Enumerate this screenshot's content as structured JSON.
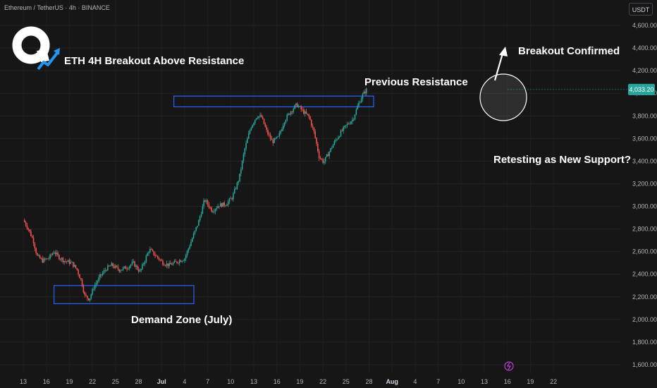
{
  "header": {
    "symbol": "Ethereum / TetherUS · 4h · BINANCE",
    "currency": "USDT"
  },
  "annotations": {
    "title": "ETH 4H Breakout Above Resistance",
    "previous_resistance": "Previous Resistance",
    "breakout_confirmed": "Breakout Confirmed",
    "retesting": "Retesting as New Support?",
    "demand_zone": "Demand Zone (July)"
  },
  "colors": {
    "background": "#161616",
    "up": "#26a69a",
    "down": "#ef5350",
    "zone": "#2962ff",
    "price_tag": "#26a69a",
    "logo_arrow": "#2196f3"
  },
  "chart_data": {
    "type": "candlestick",
    "title": "ETH 4H Breakout Above Resistance",
    "xlabel": "",
    "ylabel": "",
    "x_ticks": [
      "13",
      "16",
      "19",
      "22",
      "25",
      "28",
      "Jul",
      "4",
      "7",
      "10",
      "13",
      "16",
      "19",
      "22",
      "25",
      "28",
      "Aug",
      "4",
      "7",
      "10",
      "13",
      "16",
      "19",
      "22"
    ],
    "y_ticks": [
      1600,
      1800,
      2000,
      2200,
      2400,
      2600,
      2800,
      3000,
      3200,
      3400,
      3600,
      3800,
      4000,
      4200,
      4400,
      4600
    ],
    "y_tick_labels": [
      "1,600.00",
      "1,800.00",
      "2,000.00",
      "2,200.00",
      "2,400.00",
      "2,600.00",
      "2,800.00",
      "3,000.00",
      "3,200.00",
      "3,400.00",
      "3,600.00",
      "3,800.00",
      "4,000.00",
      "4,200.00",
      "4,400.00",
      "4,600.00"
    ],
    "ylim": [
      1560,
      4720
    ],
    "last_price": 4033.2,
    "last_price_label": "4,033.20",
    "zones": [
      {
        "name": "Previous Resistance",
        "start_day": 19.6,
        "end_day": 45.6,
        "low": 3880,
        "high": 3975
      },
      {
        "name": "Demand Zone (July)",
        "start_day": 4.0,
        "end_day": 22.2,
        "low": 2140,
        "high": 2300
      }
    ],
    "price_path": [
      [
        0.0,
        2880
      ],
      [
        0.6,
        2810
      ],
      [
        1.3,
        2700
      ],
      [
        1.8,
        2560
      ],
      [
        2.5,
        2520
      ],
      [
        3.3,
        2540
      ],
      [
        4.0,
        2600
      ],
      [
        4.5,
        2560
      ],
      [
        5.3,
        2520
      ],
      [
        6.3,
        2500
      ],
      [
        7.0,
        2440
      ],
      [
        7.6,
        2330
      ],
      [
        8.0,
        2210
      ],
      [
        8.6,
        2180
      ],
      [
        9.2,
        2290
      ],
      [
        10.0,
        2380
      ],
      [
        10.8,
        2450
      ],
      [
        11.5,
        2480
      ],
      [
        12.5,
        2440
      ],
      [
        13.5,
        2460
      ],
      [
        14.3,
        2500
      ],
      [
        15.2,
        2420
      ],
      [
        15.8,
        2520
      ],
      [
        16.4,
        2620
      ],
      [
        17.3,
        2560
      ],
      [
        18.2,
        2500
      ],
      [
        19.0,
        2480
      ],
      [
        20.0,
        2510
      ],
      [
        21.0,
        2540
      ],
      [
        21.9,
        2700
      ],
      [
        22.8,
        2860
      ],
      [
        23.6,
        3060
      ],
      [
        24.6,
        2960
      ],
      [
        25.4,
        3010
      ],
      [
        26.4,
        3020
      ],
      [
        27.2,
        3080
      ],
      [
        28.1,
        3250
      ],
      [
        28.8,
        3500
      ],
      [
        29.6,
        3700
      ],
      [
        30.4,
        3800
      ],
      [
        31.0,
        3790
      ],
      [
        31.7,
        3660
      ],
      [
        32.4,
        3570
      ],
      [
        33.2,
        3610
      ],
      [
        34.0,
        3760
      ],
      [
        34.8,
        3840
      ],
      [
        35.6,
        3900
      ],
      [
        36.4,
        3840
      ],
      [
        37.2,
        3790
      ],
      [
        37.9,
        3640
      ],
      [
        38.5,
        3440
      ],
      [
        39.1,
        3390
      ],
      [
        39.8,
        3480
      ],
      [
        40.6,
        3580
      ],
      [
        41.4,
        3660
      ],
      [
        42.1,
        3720
      ],
      [
        42.9,
        3770
      ],
      [
        43.6,
        3900
      ],
      [
        44.2,
        3990
      ],
      [
        44.8,
        4040
      ]
    ]
  }
}
